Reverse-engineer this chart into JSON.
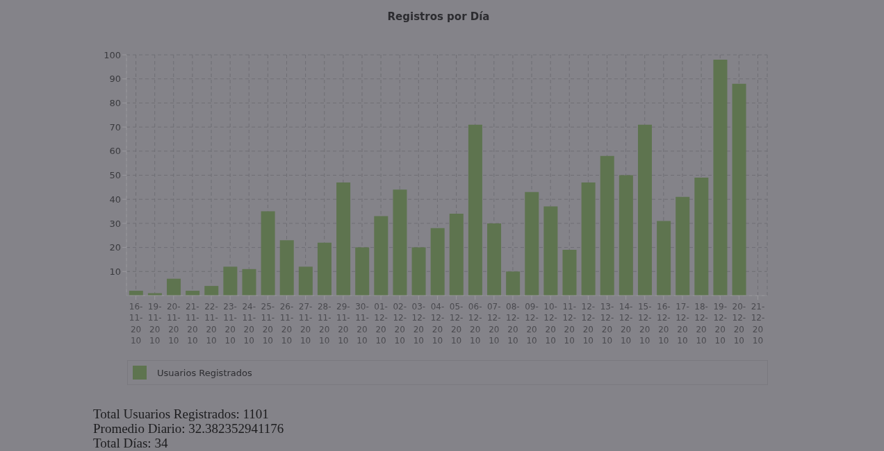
{
  "chart_data": {
    "type": "bar",
    "title": "Registros por Día",
    "categories": [
      "16-11-2010",
      "19-11-2010",
      "20-11-2010",
      "21-11-2010",
      "22-11-2010",
      "23-11-2010",
      "24-11-2010",
      "25-11-2010",
      "26-11-2010",
      "27-11-2010",
      "28-11-2010",
      "29-11-2010",
      "30-11-2010",
      "01-12-2010",
      "02-12-2010",
      "03-12-2010",
      "04-12-2010",
      "05-12-2010",
      "06-12-2010",
      "07-12-2010",
      "08-12-2010",
      "09-12-2010",
      "10-12-2010",
      "11-12-2010",
      "12-12-2010",
      "13-12-2010",
      "14-12-2010",
      "15-12-2010",
      "16-12-2010",
      "17-12-2010",
      "18-12-2010",
      "19-12-2010",
      "20-12-2010",
      "21-12-2010"
    ],
    "series": [
      {
        "name": "Usuarios Registrados",
        "color": "#5e744f",
        "values": [
          2,
          1,
          7,
          2,
          4,
          12,
          11,
          35,
          23,
          12,
          22,
          47,
          20,
          33,
          44,
          20,
          28,
          34,
          71,
          30,
          10,
          43,
          37,
          19,
          47,
          58,
          50,
          71,
          31,
          41,
          49,
          98,
          88,
          0
        ]
      }
    ],
    "ylim": [
      0,
      100
    ],
    "yticks": [
      10,
      20,
      30,
      40,
      50,
      60,
      70,
      80,
      90,
      100
    ],
    "grid": true,
    "legend": "bottom",
    "annotations": [
      "Total Usuarios Registrados: 1101",
      "Promedio Diario: 32.382352941176",
      "Total Días: 34"
    ]
  }
}
